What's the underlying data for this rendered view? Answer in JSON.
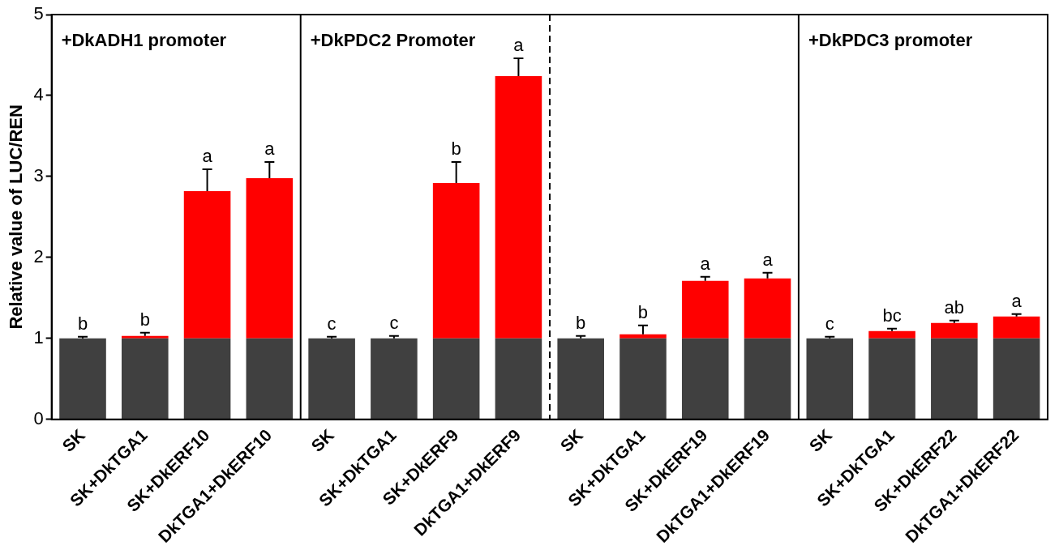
{
  "chart_data": {
    "type": "bar",
    "stacked": true,
    "ylabel": "Relative value of LUC/REN",
    "categories": [
      "SK",
      "SK+DkTGA1",
      "SK+DkERF10",
      "DkTGA1+DkERF10",
      "SK",
      "SK+DkTGA1",
      "SK+DkERF9",
      "DkTGA1+DkERF9",
      "SK",
      "SK+DkTGA1",
      "SK+DkERF19",
      "DkTGA1+DkERF19",
      "SK",
      "SK+DkTGA1",
      "SK+DkERF22",
      "DkTGA1+DkERF22"
    ],
    "series": [
      {
        "color": "#404040",
        "values": [
          1,
          1,
          1,
          1,
          1,
          1,
          1,
          1,
          1,
          1,
          1,
          1,
          1,
          1,
          1,
          1
        ]
      },
      {
        "color": "#ff0000",
        "values": [
          0,
          0.03,
          1.82,
          1.98,
          0,
          0,
          1.92,
          3.24,
          0,
          0.05,
          0.71,
          0.74,
          0,
          0.09,
          0.19,
          0.27
        ],
        "errors": [
          0.02,
          0.04,
          0.27,
          0.2,
          0.02,
          0.03,
          0.26,
          0.22,
          0.03,
          0.11,
          0.05,
          0.07,
          0.02,
          0.03,
          0.03,
          0.03
        ],
        "value_labels": [
          "b",
          "b",
          "a",
          "a",
          "c",
          "c",
          "b",
          "a",
          "b",
          "b",
          "a",
          "a",
          "c",
          "bc",
          "ab",
          "a"
        ]
      }
    ],
    "annotations": [
      "+DkADH1 promoter",
      "+DkPDC2 Promoter",
      "+DkPDC3 promoter"
    ],
    "ylim": [
      0,
      5
    ],
    "yticks": [
      0,
      1,
      2,
      3,
      4,
      5
    ],
    "grid": false,
    "legend": false
  }
}
